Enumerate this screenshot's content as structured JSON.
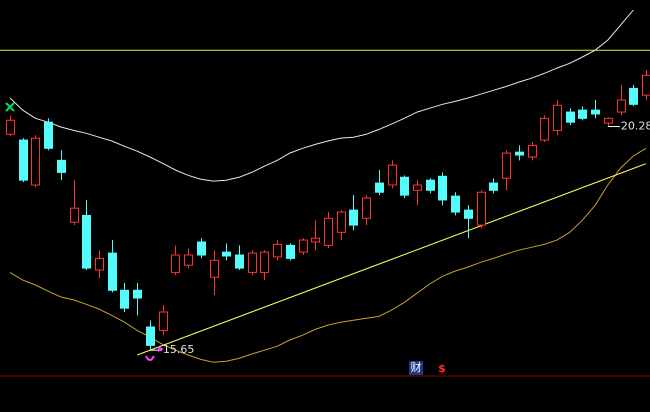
{
  "chart_data": {
    "type": "candlestick",
    "ylim": [
      14.37,
      22.9
    ],
    "up_color": "#ff3232",
    "down_color": "#54fcfc",
    "open": [
      20.12,
      20.0,
      19.07,
      20.37,
      19.58,
      18.3,
      18.44,
      17.31,
      17.66,
      16.89,
      16.89,
      16.13,
      16.06,
      17.26,
      17.41,
      17.89,
      17.16,
      17.68,
      17.62,
      17.26,
      17.26,
      17.58,
      17.82,
      17.68,
      17.89,
      17.82,
      18.09,
      18.55,
      18.38,
      19.11,
      19.07,
      19.23,
      18.96,
      19.17,
      19.25,
      18.84,
      18.55,
      18.24,
      19.11,
      19.21,
      19.75,
      19.65,
      20.0,
      20.2,
      20.58,
      20.62,
      20.62,
      20.35,
      20.58,
      21.07,
      20.93
    ],
    "high": [
      20.51,
      20.04,
      20.1,
      20.45,
      19.79,
      19.17,
      18.76,
      17.72,
      17.93,
      17.04,
      17.04,
      16.27,
      16.58,
      17.82,
      17.76,
      17.97,
      17.72,
      17.86,
      17.82,
      17.72,
      17.72,
      17.93,
      17.86,
      17.97,
      18.34,
      18.51,
      18.55,
      18.86,
      18.86,
      19.38,
      19.58,
      19.27,
      19.17,
      19.21,
      19.33,
      18.92,
      18.65,
      18.96,
      19.21,
      19.79,
      19.89,
      19.96,
      20.51,
      20.83,
      20.66,
      20.7,
      20.83,
      20.47,
      21.14,
      21.14,
      21.45
    ],
    "low": [
      20.08,
      19.13,
      19.02,
      19.79,
      19.17,
      18.24,
      17.31,
      17.14,
      16.85,
      16.44,
      16.37,
      15.65,
      15.96,
      17.2,
      17.35,
      17.55,
      16.79,
      17.51,
      17.31,
      17.2,
      17.1,
      17.51,
      17.51,
      17.62,
      17.72,
      17.76,
      17.93,
      18.13,
      18.24,
      18.86,
      19.0,
      18.8,
      18.65,
      18.9,
      18.65,
      18.44,
      17.97,
      18.18,
      18.9,
      18.96,
      19.58,
      19.58,
      19.96,
      20.1,
      20.31,
      20.41,
      20.45,
      20.28,
      20.51,
      20.7,
      20.83
    ],
    "close": [
      20.41,
      19.17,
      20.04,
      19.83,
      19.33,
      18.59,
      17.35,
      17.55,
      16.89,
      16.52,
      16.73,
      15.75,
      16.44,
      17.62,
      17.62,
      17.62,
      17.51,
      17.6,
      17.35,
      17.66,
      17.68,
      17.84,
      17.55,
      17.93,
      17.97,
      18.38,
      18.51,
      18.24,
      18.8,
      18.92,
      19.48,
      18.86,
      19.07,
      18.96,
      18.76,
      18.51,
      18.38,
      18.92,
      18.96,
      19.73,
      19.69,
      19.89,
      20.45,
      20.72,
      20.37,
      20.45,
      20.54,
      20.45,
      20.83,
      20.74,
      21.34
    ],
    "series": [
      {
        "color": "#e8e8e8",
        "values": [
          20.87,
          20.62,
          20.45,
          20.37,
          20.27,
          20.2,
          20.14,
          20.06,
          19.98,
          19.87,
          19.77,
          19.65,
          19.52,
          19.38,
          19.27,
          19.19,
          19.15,
          19.17,
          19.23,
          19.33,
          19.46,
          19.58,
          19.73,
          19.83,
          19.91,
          19.98,
          20.04,
          20.06,
          20.12,
          20.22,
          20.33,
          20.45,
          20.58,
          20.66,
          20.74,
          20.8,
          20.87,
          20.95,
          21.03,
          21.11,
          21.2,
          21.28,
          21.38,
          21.49,
          21.59,
          21.72,
          21.86,
          22.07,
          22.38,
          22.69,
          null
        ]
      },
      {
        "color": "#c8a030",
        "values": [
          17.26,
          17.1,
          17.0,
          16.87,
          16.75,
          16.69,
          16.6,
          16.5,
          16.37,
          16.23,
          16.06,
          15.92,
          15.77,
          15.65,
          15.55,
          15.46,
          15.4,
          15.42,
          15.48,
          15.57,
          15.65,
          15.73,
          15.86,
          15.96,
          16.08,
          16.17,
          16.23,
          16.27,
          16.31,
          16.35,
          16.48,
          16.64,
          16.83,
          17.02,
          17.18,
          17.29,
          17.37,
          17.47,
          17.55,
          17.64,
          17.72,
          17.78,
          17.84,
          17.93,
          18.09,
          18.34,
          18.65,
          19.07,
          19.42,
          19.67,
          19.83
        ]
      },
      {
        "color": "#ffff66",
        "x": [
          10,
          50
        ],
        "values": [
          15.55,
          19.51
        ]
      }
    ],
    "hlines": [
      {
        "value": 21.86,
        "color": "#e8e840"
      }
    ],
    "annotations": [
      {
        "value": 15.65
      },
      {
        "value": 20.28
      }
    ],
    "icons": [
      "财",
      "$"
    ]
  }
}
